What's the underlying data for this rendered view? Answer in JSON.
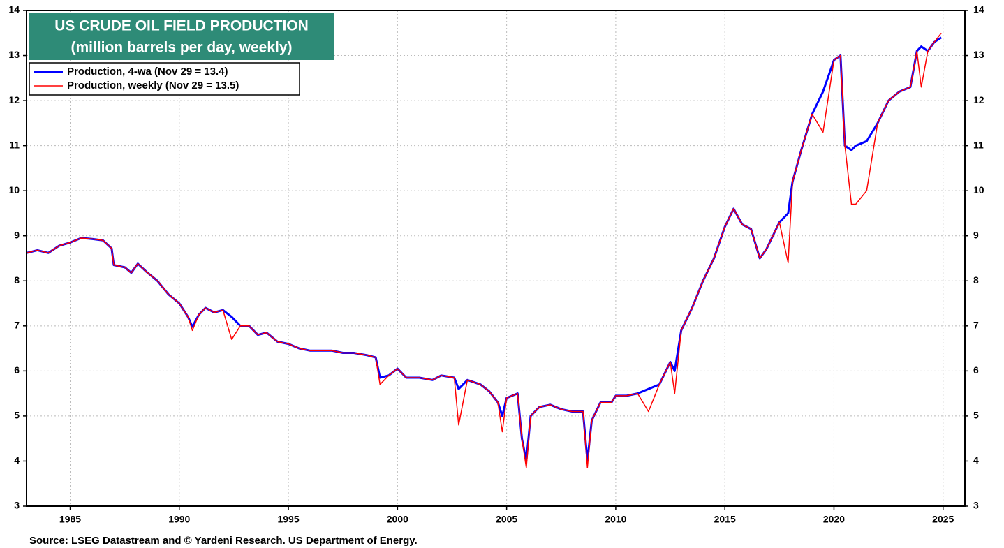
{
  "chart_data": {
    "type": "line",
    "title": "US CRUDE OIL FIELD PRODUCTION",
    "subtitle": "(million barrels per day, weekly)",
    "source": "Source: LSEG Datastream and © Yardeni Research. US Department of Energy.",
    "x": [
      1983.0,
      1983.5,
      1984.0,
      1984.5,
      1985.0,
      1985.5,
      1986.0,
      1986.5,
      1986.9,
      1987.0,
      1987.5,
      1987.8,
      1988.1,
      1988.5,
      1989.0,
      1989.5,
      1990.0,
      1990.4,
      1990.6,
      1990.9,
      1991.2,
      1991.6,
      1992.0,
      1992.4,
      1992.8,
      1993.2,
      1993.6,
      1994.0,
      1994.5,
      1995.0,
      1995.5,
      1996.0,
      1996.5,
      1997.0,
      1997.5,
      1998.0,
      1998.6,
      1999.0,
      1999.2,
      1999.6,
      2000.0,
      2000.4,
      2001.0,
      2001.6,
      2002.0,
      2002.6,
      2002.8,
      2003.2,
      2003.8,
      2004.2,
      2004.6,
      2004.8,
      2005.0,
      2005.5,
      2005.7,
      2005.9,
      2006.1,
      2006.5,
      2007.0,
      2007.5,
      2008.0,
      2008.5,
      2008.7,
      2008.9,
      2009.3,
      2009.8,
      2010.0,
      2010.5,
      2011.0,
      2011.5,
      2012.0,
      2012.5,
      2012.7,
      2013.0,
      2013.5,
      2014.0,
      2014.5,
      2015.0,
      2015.4,
      2015.8,
      2016.2,
      2016.6,
      2016.9,
      2017.5,
      2017.9,
      2018.1,
      2018.5,
      2019.0,
      2019.5,
      2020.0,
      2020.3,
      2020.5,
      2020.8,
      2021.0,
      2021.5,
      2022.0,
      2022.5,
      2023.0,
      2023.5,
      2023.8,
      2024.0,
      2024.3,
      2024.6,
      2024.92
    ],
    "series": [
      {
        "name": "Production, 4-wa (Nov 29 = 13.4)",
        "color": "#0000ff",
        "width": 3,
        "values": [
          8.62,
          8.68,
          8.62,
          8.78,
          8.85,
          8.95,
          8.93,
          8.9,
          8.72,
          8.35,
          8.3,
          8.18,
          8.38,
          8.2,
          8.0,
          7.7,
          7.5,
          7.2,
          6.98,
          7.25,
          7.4,
          7.3,
          7.35,
          7.2,
          7.0,
          7.0,
          6.8,
          6.85,
          6.65,
          6.6,
          6.5,
          6.45,
          6.45,
          6.45,
          6.4,
          6.4,
          6.35,
          6.3,
          5.85,
          5.9,
          6.05,
          5.85,
          5.85,
          5.8,
          5.9,
          5.85,
          5.6,
          5.8,
          5.7,
          5.55,
          5.3,
          5.0,
          5.4,
          5.5,
          4.5,
          4.0,
          5.0,
          5.2,
          5.25,
          5.15,
          5.1,
          5.1,
          4.0,
          4.9,
          5.3,
          5.3,
          5.45,
          5.45,
          5.5,
          5.6,
          5.7,
          6.2,
          6.0,
          6.9,
          7.4,
          8.0,
          8.5,
          9.2,
          9.6,
          9.25,
          9.15,
          8.5,
          8.7,
          9.3,
          9.5,
          10.2,
          10.9,
          11.7,
          12.2,
          12.9,
          13.0,
          11.0,
          10.9,
          11.0,
          11.1,
          11.5,
          12.0,
          12.2,
          12.3,
          13.1,
          13.2,
          13.1,
          13.3,
          13.4
        ]
      },
      {
        "name": "Production, weekly (Nov 29 = 13.5)",
        "color": "#ff0000",
        "width": 1.5,
        "values": [
          8.62,
          8.68,
          8.62,
          8.78,
          8.85,
          8.95,
          8.93,
          8.9,
          8.72,
          8.35,
          8.3,
          8.18,
          8.38,
          8.2,
          8.0,
          7.7,
          7.5,
          7.2,
          6.9,
          7.25,
          7.4,
          7.3,
          7.35,
          6.7,
          7.0,
          7.0,
          6.8,
          6.85,
          6.65,
          6.6,
          6.5,
          6.45,
          6.45,
          6.45,
          6.4,
          6.4,
          6.35,
          6.3,
          5.7,
          5.9,
          6.05,
          5.85,
          5.85,
          5.8,
          5.9,
          5.85,
          4.8,
          5.8,
          5.7,
          5.55,
          5.3,
          4.65,
          5.4,
          5.5,
          4.5,
          3.85,
          5.0,
          5.2,
          5.25,
          5.15,
          5.1,
          5.1,
          3.85,
          4.9,
          5.3,
          5.3,
          5.45,
          5.45,
          5.5,
          5.1,
          5.7,
          6.2,
          5.5,
          6.9,
          7.4,
          8.0,
          8.5,
          9.2,
          9.6,
          9.25,
          9.15,
          8.5,
          8.7,
          9.3,
          8.4,
          10.2,
          10.9,
          11.7,
          11.3,
          12.9,
          13.0,
          11.0,
          9.7,
          9.7,
          10.0,
          11.5,
          12.0,
          12.2,
          12.3,
          13.1,
          12.3,
          13.1,
          13.3,
          13.5
        ]
      }
    ],
    "xlim": [
      1983,
      2026
    ],
    "xticks": [
      1985,
      1990,
      1995,
      2000,
      2005,
      2010,
      2015,
      2020,
      2025
    ],
    "ylim": [
      3,
      14
    ],
    "yticks": [
      3,
      4,
      5,
      6,
      7,
      8,
      9,
      10,
      11,
      12,
      13,
      14
    ],
    "grid": true,
    "legend": "upper left",
    "title_color": "#2e8b77"
  }
}
